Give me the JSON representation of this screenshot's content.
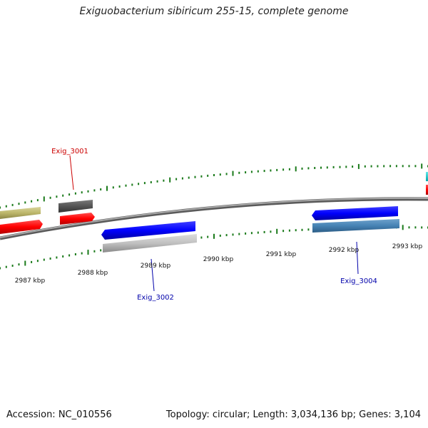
{
  "title": "Exiguobacterium sibiricum 255-15, complete genome",
  "footer": {
    "accession": "Accession: NC_010556",
    "summary": "Topology: circular; Length: 3,034,136 bp; Genes: 3,104"
  },
  "scale_labels": [
    "2987 kbp",
    "2988 kbp",
    "2989 kbp",
    "2990 kbp",
    "2991 kbp",
    "2992 kbp",
    "2993 kbp"
  ],
  "gene_labels": {
    "exig_3001": "Exig_3001",
    "exig_3002": "Exig_3002",
    "exig_3004": "Exig_3004"
  },
  "colors": {
    "forward_label": "#cc0000",
    "reverse_label": "#0000aa",
    "tick": "#1a7a1a",
    "backbone": "#777777",
    "red": "#ff0000",
    "blue": "#0000ff",
    "olive": "#bdb76b",
    "dark_gray": "#555555",
    "light_gray": "#c0c0c0",
    "steel_blue": "#4682b4",
    "cyan": "#00ced1"
  }
}
